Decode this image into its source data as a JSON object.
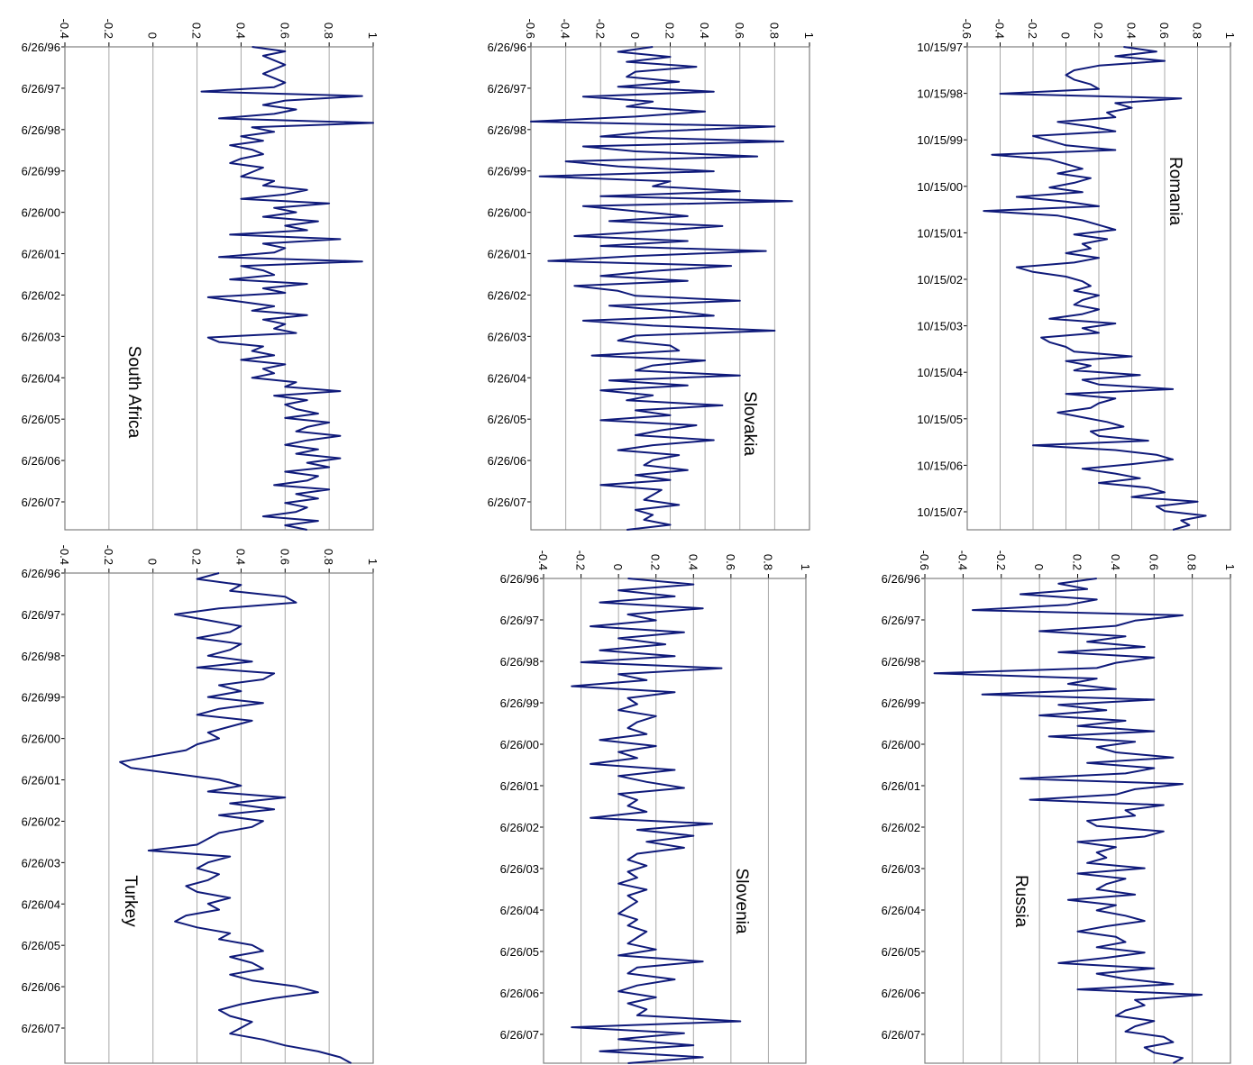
{
  "chart_data": [
    {
      "type": "line",
      "title": "Romania",
      "x_ticks": [
        "10/15/97",
        "10/15/98",
        "10/15/99",
        "10/15/00",
        "10/15/01",
        "10/15/02",
        "10/15/03",
        "10/15/04",
        "10/15/05",
        "10/15/06",
        "10/15/07"
      ],
      "y_ticks": [
        "-0.6",
        "-0.4",
        "-0.2",
        "0",
        "0.2",
        "0.4",
        "0.6",
        "0.8",
        "1"
      ],
      "ylim": [
        -0.6,
        1
      ],
      "grid": true,
      "series": [
        {
          "values": [
            0.35,
            0.55,
            0.3,
            0.6,
            0.2,
            0.05,
            0.0,
            0.05,
            0.15,
            0.2,
            -0.4,
            0.7,
            0.3,
            0.4,
            0.25,
            0.3,
            -0.05,
            0.15,
            0.3,
            -0.2,
            -0.1,
            0.0,
            0.3,
            -0.45,
            -0.1,
            0.0,
            0.1,
            -0.05,
            0.15,
            0.05,
            -0.1,
            0.1,
            -0.3,
            0.0,
            0.2,
            -0.5,
            -0.05,
            0.1,
            0.2,
            0.3,
            0.05,
            0.25,
            0.1,
            0.15,
            0.0,
            0.2,
            0.05,
            -0.3,
            -0.2,
            0.0,
            0.1,
            0.15,
            0.05,
            0.2,
            0.1,
            0.05,
            0.2,
            0.1,
            -0.1,
            0.3,
            0.1,
            0.2,
            -0.15,
            -0.1,
            0.0,
            0.05,
            0.4,
            0.0,
            0.15,
            0.05,
            0.45,
            0.1,
            0.2,
            0.65,
            0.0,
            0.3,
            0.2,
            0.15,
            -0.05,
            0.1,
            0.25,
            0.35,
            0.15,
            0.2,
            0.5,
            -0.2,
            0.3,
            0.55,
            0.65,
            0.4,
            0.1,
            0.3,
            0.45,
            0.2,
            0.5,
            0.6,
            0.4,
            0.8,
            0.55,
            0.6,
            0.85,
            0.7,
            0.75,
            0.65
          ]
        }
      ]
    },
    {
      "type": "line",
      "title": "Slovakia",
      "x_ticks": [
        "6/26/96",
        "6/26/97",
        "6/26/98",
        "6/26/99",
        "6/26/00",
        "6/26/01",
        "6/26/02",
        "6/26/03",
        "6/26/04",
        "6/26/05",
        "6/26/06",
        "6/26/07"
      ],
      "y_ticks": [
        "-0.6",
        "-0.4",
        "-0.2",
        "0",
        "0.2",
        "0.4",
        "0.6",
        "0.8",
        "1"
      ],
      "ylim": [
        -0.6,
        1
      ],
      "grid": true,
      "series": [
        {
          "values": [
            0.1,
            -0.1,
            0.2,
            -0.05,
            0.35,
            0.0,
            -0.05,
            0.25,
            -0.1,
            0.45,
            -0.3,
            0.1,
            -0.05,
            0.4,
            0.0,
            -0.6,
            0.8,
            0.1,
            -0.2,
            0.85,
            -0.3,
            0.0,
            0.7,
            -0.4,
            -0.1,
            0.45,
            -0.55,
            0.2,
            0.1,
            0.6,
            -0.2,
            0.9,
            -0.3,
            0.0,
            0.3,
            -0.15,
            0.5,
            0.1,
            -0.35,
            0.3,
            -0.2,
            0.75,
            0.0,
            -0.5,
            0.55,
            0.1,
            -0.2,
            0.3,
            -0.35,
            -0.1,
            0.0,
            0.6,
            -0.15,
            0.2,
            0.45,
            -0.3,
            0.1,
            0.8,
            0.0,
            -0.1,
            0.2,
            0.25,
            -0.25,
            0.4,
            0.1,
            0.0,
            0.6,
            -0.15,
            0.3,
            -0.2,
            0.1,
            -0.05,
            0.5,
            0.0,
            0.2,
            -0.2,
            0.35,
            0.15,
            0.0,
            0.45,
            0.1,
            -0.1,
            0.25,
            0.1,
            0.05,
            0.3,
            0.0,
            0.2,
            -0.2,
            0.15,
            0.1,
            0.05,
            0.25,
            0.0,
            0.1,
            0.05,
            0.2,
            -0.05
          ]
        }
      ]
    },
    {
      "type": "line",
      "title": "South Africa",
      "x_ticks": [
        "6/26/96",
        "6/26/97",
        "6/26/98",
        "6/26/99",
        "6/26/00",
        "6/26/01",
        "6/26/02",
        "6/26/03",
        "6/26/04",
        "6/26/05",
        "6/26/06",
        "6/26/07"
      ],
      "y_ticks": [
        "-0.4",
        "-0.2",
        "0",
        "0.2",
        "0.4",
        "0.6",
        "0.8",
        "1"
      ],
      "ylim": [
        -0.4,
        1
      ],
      "grid": true,
      "series": [
        {
          "values": [
            0.45,
            0.6,
            0.5,
            0.55,
            0.6,
            0.55,
            0.5,
            0.55,
            0.6,
            0.55,
            0.22,
            0.95,
            0.6,
            0.5,
            0.65,
            0.55,
            0.3,
            1.0,
            0.45,
            0.55,
            0.4,
            0.5,
            0.35,
            0.45,
            0.5,
            0.4,
            0.35,
            0.5,
            0.45,
            0.4,
            0.55,
            0.5,
            0.7,
            0.6,
            0.4,
            0.8,
            0.55,
            0.65,
            0.5,
            0.75,
            0.6,
            0.7,
            0.35,
            0.85,
            0.5,
            0.6,
            0.55,
            0.3,
            0.95,
            0.4,
            0.5,
            0.55,
            0.35,
            0.7,
            0.5,
            0.6,
            0.25,
            0.4,
            0.55,
            0.45,
            0.7,
            0.5,
            0.6,
            0.55,
            0.65,
            0.25,
            0.3,
            0.5,
            0.45,
            0.55,
            0.4,
            0.6,
            0.5,
            0.55,
            0.45,
            0.65,
            0.6,
            0.85,
            0.55,
            0.7,
            0.6,
            0.65,
            0.75,
            0.6,
            0.8,
            0.7,
            0.65,
            0.85,
            0.7,
            0.6,
            0.75,
            0.65,
            0.85,
            0.7,
            0.8,
            0.6,
            0.75,
            0.7,
            0.55,
            0.8,
            0.65,
            0.75,
            0.6,
            0.7,
            0.65,
            0.5,
            0.75,
            0.6,
            0.7
          ]
        }
      ]
    },
    {
      "type": "line",
      "title": "Russia",
      "x_ticks": [
        "6/26/96",
        "6/26/97",
        "6/26/98",
        "6/26/99",
        "6/26/00",
        "6/26/01",
        "6/26/02",
        "6/26/03",
        "6/26/04",
        "6/26/05",
        "6/26/06",
        "6/26/07"
      ],
      "y_ticks": [
        "-0.6",
        "-0.4",
        "-0.2",
        "0",
        "0.2",
        "0.4",
        "0.6",
        "0.8",
        "1"
      ],
      "ylim": [
        -0.6,
        1
      ],
      "grid": true,
      "series": [
        {
          "values": [
            0.3,
            0.1,
            0.25,
            -0.1,
            0.3,
            0.15,
            -0.35,
            0.75,
            0.5,
            0.4,
            0.0,
            0.45,
            0.25,
            0.55,
            0.1,
            0.6,
            0.4,
            0.3,
            -0.55,
            0.3,
            0.15,
            0.4,
            -0.3,
            0.6,
            0.1,
            0.35,
            0.0,
            0.45,
            0.2,
            0.6,
            0.05,
            0.5,
            0.3,
            0.4,
            0.7,
            0.25,
            0.6,
            0.45,
            -0.1,
            0.75,
            0.5,
            0.4,
            -0.05,
            0.65,
            0.45,
            0.5,
            0.25,
            0.3,
            0.65,
            0.55,
            0.2,
            0.4,
            0.3,
            0.35,
            0.25,
            0.55,
            0.2,
            0.45,
            0.35,
            0.3,
            0.5,
            0.15,
            0.4,
            0.3,
            0.45,
            0.55,
            0.35,
            0.2,
            0.4,
            0.45,
            0.3,
            0.55,
            0.35,
            0.1,
            0.6,
            0.3,
            0.45,
            0.7,
            0.2,
            0.85,
            0.5,
            0.55,
            0.45,
            0.4,
            0.6,
            0.5,
            0.45,
            0.65,
            0.7,
            0.55,
            0.6,
            0.75,
            0.7
          ]
        }
      ]
    },
    {
      "type": "line",
      "title": "Slovenia",
      "x_ticks": [
        "6/26/96",
        "6/26/97",
        "6/26/98",
        "6/26/99",
        "6/26/00",
        "6/26/01",
        "6/26/02",
        "6/26/03",
        "6/26/04",
        "6/26/05",
        "6/26/06",
        "6/26/07"
      ],
      "y_ticks": [
        "-0.4",
        "-0.2",
        "0",
        "0.2",
        "0.4",
        "0.6",
        "0.8",
        "1"
      ],
      "ylim": [
        -0.4,
        1
      ],
      "grid": true,
      "series": [
        {
          "values": [
            0.05,
            0.4,
            0.0,
            0.3,
            -0.1,
            0.45,
            0.05,
            0.2,
            -0.15,
            0.35,
            0.0,
            0.25,
            -0.1,
            0.3,
            -0.2,
            0.55,
            0.0,
            0.15,
            -0.25,
            0.3,
            0.05,
            0.1,
            0.0,
            0.2,
            0.1,
            0.05,
            0.15,
            -0.1,
            0.2,
            0.0,
            0.1,
            -0.15,
            0.3,
            0.0,
            0.15,
            0.35,
            0.0,
            0.1,
            0.05,
            0.15,
            -0.15,
            0.5,
            0.1,
            0.4,
            0.15,
            0.35,
            0.1,
            0.05,
            0.15,
            0.05,
            0.1,
            0.0,
            0.15,
            0.05,
            0.1,
            0.05,
            0.0,
            0.1,
            0.05,
            0.15,
            0.1,
            0.05,
            0.2,
            0.0,
            0.45,
            0.1,
            0.05,
            0.3,
            0.1,
            0.0,
            0.2,
            0.05,
            0.15,
            0.1,
            0.65,
            -0.25,
            0.35,
            0.0,
            0.4,
            -0.1,
            0.45,
            0.05
          ]
        }
      ]
    },
    {
      "type": "line",
      "title": "Turkey",
      "x_ticks": [
        "6/26/96",
        "6/26/97",
        "6/26/98",
        "6/26/99",
        "6/26/00",
        "6/26/01",
        "6/26/02",
        "6/26/03",
        "6/26/04",
        "6/26/05",
        "6/26/06",
        "6/26/07"
      ],
      "y_ticks": [
        "-0.4",
        "-0.2",
        "0",
        "0.2",
        "0.4",
        "0.6",
        "0.8",
        "1"
      ],
      "ylim": [
        -0.4,
        1
      ],
      "grid": true,
      "series": [
        {
          "values": [
            0.3,
            0.2,
            0.4,
            0.35,
            0.6,
            0.65,
            0.3,
            0.1,
            0.25,
            0.4,
            0.35,
            0.2,
            0.4,
            0.35,
            0.25,
            0.45,
            0.2,
            0.55,
            0.5,
            0.3,
            0.4,
            0.25,
            0.5,
            0.3,
            0.2,
            0.45,
            0.35,
            0.25,
            0.3,
            0.2,
            0.15,
            0.0,
            -0.15,
            -0.1,
            0.1,
            0.3,
            0.4,
            0.25,
            0.6,
            0.35,
            0.55,
            0.3,
            0.5,
            0.45,
            0.3,
            0.25,
            0.2,
            -0.02,
            0.35,
            0.25,
            0.2,
            0.3,
            0.25,
            0.15,
            0.2,
            0.35,
            0.25,
            0.3,
            0.15,
            0.1,
            0.2,
            0.35,
            0.3,
            0.45,
            0.5,
            0.35,
            0.45,
            0.5,
            0.35,
            0.45,
            0.65,
            0.75,
            0.55,
            0.4,
            0.3,
            0.35,
            0.45,
            0.4,
            0.35,
            0.5,
            0.6,
            0.75,
            0.85,
            0.9
          ]
        }
      ]
    }
  ]
}
